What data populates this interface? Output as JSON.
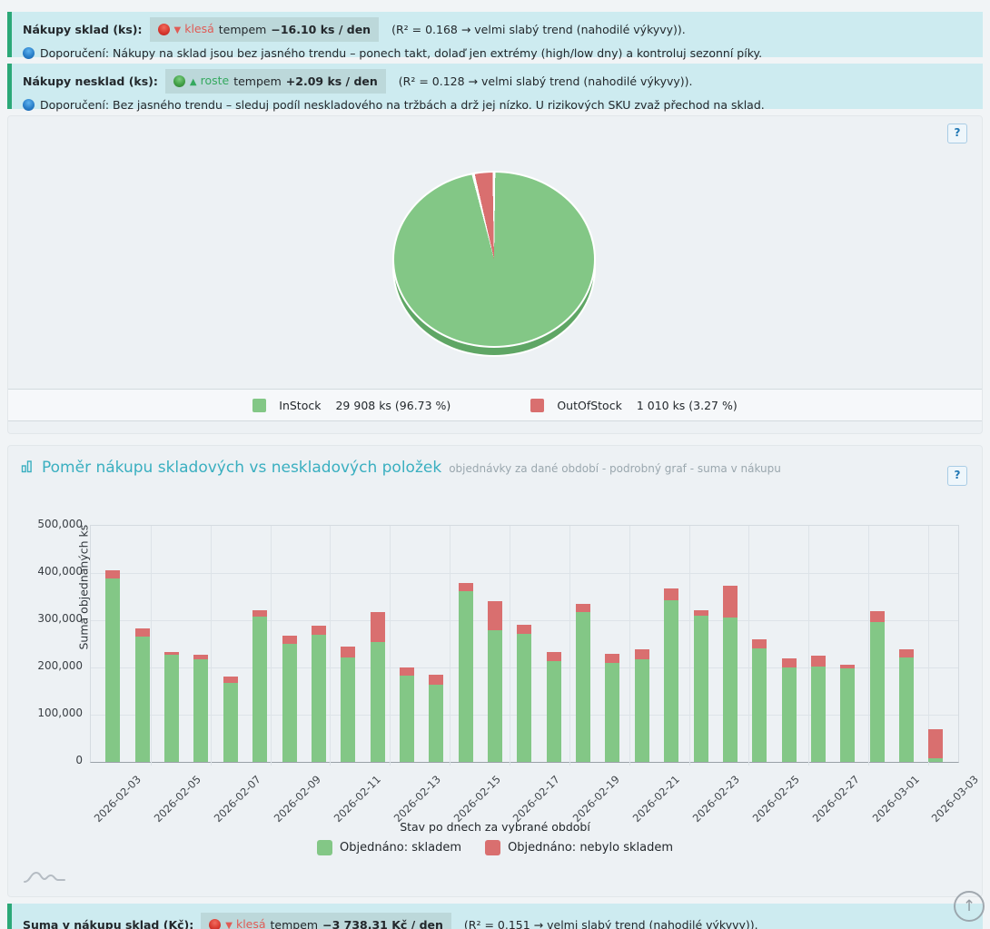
{
  "banners": {
    "stock": {
      "label": "Nákupy sklad (ks):",
      "arrow": "▼",
      "trend_word": "klesá",
      "tempem": "tempem",
      "rate": "−16.10 ks / den",
      "r2": "(R² = 0.168 → velmi slabý trend (nahodilé výkyvy)).",
      "recommendation": "Doporučení: Nákupy na sklad jsou bez jasného trendu – ponech takt, dolaď jen extrémy (high/low dny) a kontroluj sezonní píky."
    },
    "nonstock": {
      "label": "Nákupy nesklad (ks):",
      "arrow": "▲",
      "trend_word": "roste",
      "tempem": "tempem",
      "rate": "+2.09 ks / den",
      "r2": "(R² = 0.128 → velmi slabý trend (nahodilé výkyvy)).",
      "recommendation": "Doporučení: Bez jasného trendu – sleduj podíl neskladového na tržbách a drž jej nízko. U rizikových SKU zvaž přechod na sklad."
    },
    "sum": {
      "label": "Suma v nákupu sklad (Kč):",
      "arrow": "▼",
      "trend_word": "klesá",
      "tempem": "tempem",
      "rate": "−3 738.31 Kč / den",
      "r2": "(R² = 0.151 → velmi slabý trend (nahodilé výkyvy))."
    }
  },
  "pie_panel": {
    "help_label": "?"
  },
  "chart_panel": {
    "title": "Poměr nákupu skladových vs neskladových položek",
    "subtitle": "objednávky za dané období - podrobný graf - suma v nákupu",
    "help_label": "?"
  },
  "scrolltop_icon": "↑",
  "chart_data": [
    {
      "type": "pie",
      "labels": [
        "InStock",
        "OutOfStock"
      ],
      "values_ks": [
        29908,
        1010
      ],
      "percents": [
        96.73,
        3.27
      ],
      "colors": [
        "#83c786",
        "#d96f6f"
      ],
      "legend_display": [
        {
          "name": "InStock",
          "value": "29 908 ks (96.73 %)"
        },
        {
          "name": "OutOfStock",
          "value": "1 010 ks (3.27 %)"
        }
      ]
    },
    {
      "type": "bar",
      "stacked": true,
      "x": [
        "2026-02-02",
        "2026-02-03",
        "2026-02-04",
        "2026-02-05",
        "2026-02-06",
        "2026-02-07",
        "2026-02-08",
        "2026-02-09",
        "2026-02-10",
        "2026-02-11",
        "2026-02-12",
        "2026-02-13",
        "2026-02-14",
        "2026-02-15",
        "2026-02-16",
        "2026-02-17",
        "2026-02-18",
        "2026-02-19",
        "2026-02-20",
        "2026-02-21",
        "2026-02-22",
        "2026-02-23",
        "2026-02-24",
        "2026-02-25",
        "2026-02-26",
        "2026-02-27",
        "2026-02-28",
        "2026-03-01",
        "2026-03-02"
      ],
      "series": [
        {
          "name": "Objednáno: skladem",
          "color": "#83c786",
          "values": [
            388000,
            265000,
            226000,
            218000,
            167000,
            307000,
            250000,
            270000,
            222000,
            253000,
            182000,
            164000,
            362000,
            279000,
            272000,
            214000,
            317000,
            210000,
            218000,
            343000,
            309000,
            306000,
            240000,
            200000,
            202000,
            198000,
            297000,
            222000,
            8000
          ]
        },
        {
          "name": "Objednáno: nebylo skladem",
          "color": "#d96f6f",
          "values": [
            17000,
            18000,
            7000,
            9000,
            13000,
            15000,
            17000,
            19000,
            23000,
            64000,
            18000,
            21000,
            16000,
            61000,
            18000,
            19000,
            17000,
            18000,
            20000,
            25000,
            13000,
            67000,
            20000,
            20000,
            23000,
            8000,
            23000,
            16000,
            62000
          ]
        }
      ],
      "xticks": [
        "2026-02-03",
        "2026-02-05",
        "2026-02-07",
        "2026-02-09",
        "2026-02-11",
        "2026-02-13",
        "2026-02-15",
        "2026-02-17",
        "2026-02-19",
        "2026-02-21",
        "2026-02-23",
        "2026-02-25",
        "2026-02-27",
        "2026-03-01",
        "2026-03-03"
      ],
      "yticks": [
        "0",
        "100,000",
        "200,000",
        "300,000",
        "400,000",
        "500,000"
      ],
      "ylim": [
        0,
        500000
      ],
      "ylabel": "Suma objednaných ks",
      "xlabel": "Stav po dnech za vybrané období",
      "grid": true,
      "legend_position": "bottom"
    }
  ]
}
